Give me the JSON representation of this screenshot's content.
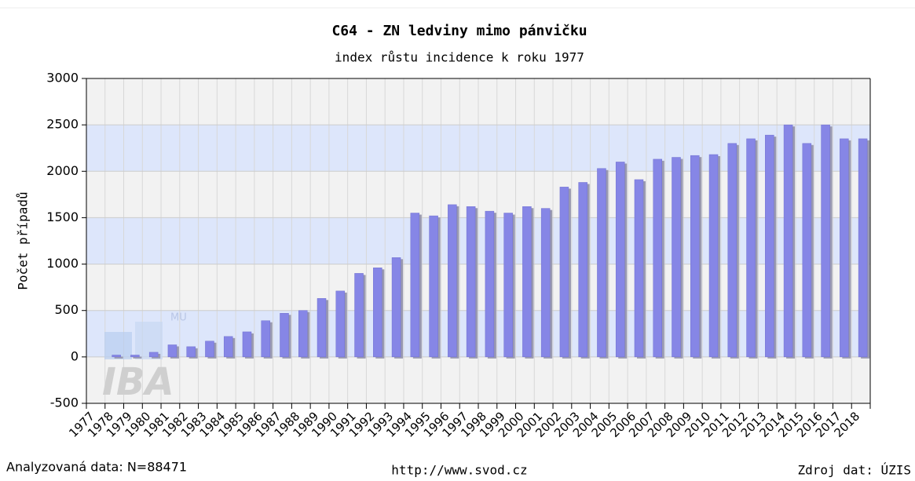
{
  "chart_data": {
    "type": "bar",
    "title": "C64 - ZN ledviny mimo pánvičku",
    "subtitle": "index růstu incidence k roku 1977",
    "y_label": "Počet případů",
    "footer_left": "Analyzovaná data: N=88471",
    "footer_center": "http://www.svod.cz",
    "footer_right": "Zdroj dat: ÚZIS",
    "watermark": "IBA",
    "watermark_sub": "MU",
    "categories": [
      "1977",
      "1978",
      "1979",
      "1980",
      "1981",
      "1982",
      "1983",
      "1984",
      "1985",
      "1986",
      "1987",
      "1988",
      "1989",
      "1990",
      "1991",
      "1992",
      "1993",
      "1994",
      "1995",
      "1996",
      "1997",
      "1998",
      "1999",
      "2000",
      "2001",
      "2002",
      "2003",
      "2004",
      "2005",
      "2006",
      "2007",
      "2008",
      "2009",
      "2010",
      "2011",
      "2012",
      "2013",
      "2014",
      "2015",
      "2016",
      "2017",
      "2018"
    ],
    "values": [
      0,
      20,
      20,
      50,
      130,
      110,
      170,
      220,
      270,
      390,
      470,
      500,
      630,
      710,
      900,
      960,
      1070,
      1550,
      1520,
      1640,
      1620,
      1570,
      1550,
      1620,
      1600,
      1830,
      1880,
      2030,
      2100,
      1910,
      2130,
      2150,
      2170,
      2180,
      2300,
      2350,
      2390,
      2500,
      2300,
      2500,
      2350,
      2350
    ],
    "color": "#8686e6",
    "ylim": [
      -500,
      3000
    ],
    "yticks": [
      -500,
      0,
      500,
      1000,
      1500,
      2000,
      2500,
      3000
    ],
    "band_colors": [
      "#f2f2f2",
      "#dde6fb"
    ],
    "grid": true
  }
}
